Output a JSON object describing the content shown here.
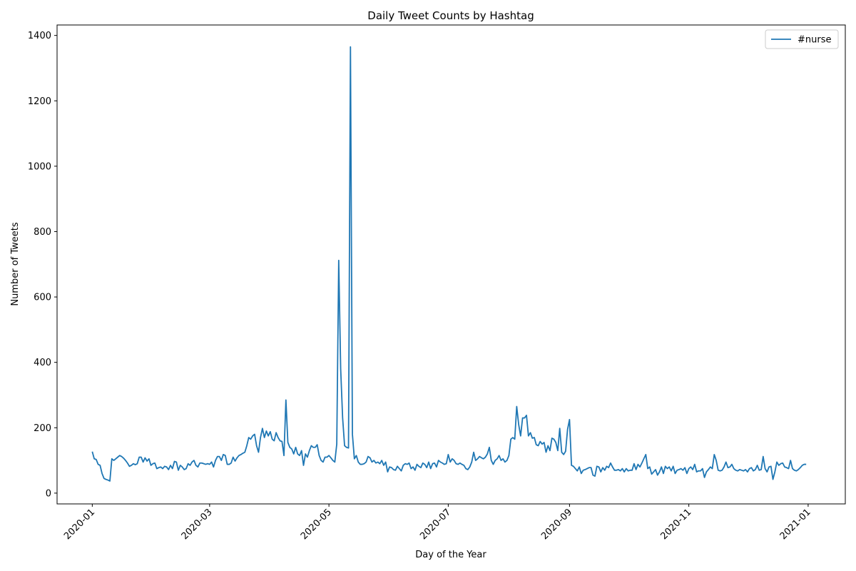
{
  "chart_data": {
    "type": "line",
    "title": "Daily Tweet Counts by Hashtag",
    "xlabel": "Day of the Year",
    "ylabel": "Number of Tweets",
    "x": [
      0,
      1,
      2,
      3,
      4,
      5,
      6,
      7,
      8,
      9,
      10,
      11,
      12,
      13,
      14,
      15,
      16,
      17,
      18,
      19,
      20,
      21,
      22,
      23,
      24,
      25,
      26,
      27,
      28,
      29,
      30,
      31,
      32,
      33,
      34,
      35,
      36,
      37,
      38,
      39,
      40,
      41,
      42,
      43,
      44,
      45,
      46,
      47,
      48,
      49,
      50,
      51,
      52,
      53,
      54,
      55,
      56,
      57,
      58,
      59,
      60,
      61,
      62,
      63,
      64,
      65,
      66,
      67,
      68,
      69,
      70,
      71,
      72,
      73,
      74,
      75,
      76,
      77,
      78,
      79,
      80,
      81,
      82,
      83,
      84,
      85,
      86,
      87,
      88,
      89,
      90,
      91,
      92,
      93,
      94,
      95,
      96,
      97,
      98,
      99,
      100,
      101,
      102,
      103,
      104,
      105,
      106,
      107,
      108,
      109,
      110,
      111,
      112,
      113,
      114,
      115,
      116,
      117,
      118,
      119,
      120,
      121,
      122,
      123,
      124,
      125,
      126,
      127,
      128,
      129,
      130,
      131,
      132,
      133,
      134,
      135,
      136,
      137,
      138,
      139,
      140,
      141,
      142,
      143,
      144,
      145,
      146,
      147,
      148,
      149,
      150,
      151,
      152,
      153,
      154,
      155,
      156,
      157,
      158,
      159,
      160,
      161,
      162,
      163,
      164,
      165,
      166,
      167,
      168,
      169,
      170,
      171,
      172,
      173,
      174,
      175,
      176,
      177,
      178,
      179,
      180,
      181,
      182,
      183,
      184,
      185,
      186,
      187,
      188,
      189,
      190,
      191,
      192,
      193,
      194,
      195,
      196,
      197,
      198,
      199,
      200,
      201,
      202,
      203,
      204,
      205,
      206,
      207,
      208,
      209,
      210,
      211,
      212,
      213,
      214,
      215,
      216,
      217,
      218,
      219,
      220,
      221,
      222,
      223,
      224,
      225,
      226,
      227,
      228,
      229,
      230,
      231,
      232,
      233,
      234,
      235,
      236,
      237,
      238,
      239,
      240,
      241,
      242,
      243,
      244,
      245,
      246,
      247,
      248,
      249,
      250,
      251,
      252,
      253,
      254,
      255,
      256,
      257,
      258,
      259,
      260,
      261,
      262,
      263,
      264,
      265,
      266,
      267,
      268,
      269,
      270,
      271,
      272,
      273,
      274,
      275,
      276,
      277,
      278,
      279,
      280,
      281,
      282,
      283,
      284,
      285,
      286,
      287,
      288,
      289,
      290,
      291,
      292,
      293,
      294,
      295,
      296,
      297,
      298,
      299,
      300,
      301,
      302,
      303,
      304,
      305,
      306,
      307,
      308,
      309,
      310,
      311,
      312,
      313,
      314,
      315,
      316,
      317,
      318,
      319,
      320,
      321,
      322,
      323,
      324,
      325,
      326,
      327,
      328,
      329,
      330,
      331,
      332,
      333,
      334,
      335,
      336,
      337,
      338,
      339,
      340,
      341,
      342,
      343,
      344,
      345,
      346,
      347,
      348,
      349,
      350,
      351,
      352,
      353,
      354,
      355,
      356,
      357,
      358,
      359,
      360,
      361,
      362,
      363,
      364,
      365
    ],
    "series": [
      {
        "name": "#nurse",
        "color": "#1f77b4",
        "values": [
          127,
          105,
          103,
          88,
          85,
          60,
          45,
          42,
          40,
          37,
          105,
          100,
          105,
          110,
          115,
          112,
          107,
          100,
          92,
          82,
          85,
          90,
          87,
          90,
          110,
          110,
          95,
          108,
          98,
          105,
          85,
          90,
          92,
          75,
          78,
          80,
          75,
          82,
          80,
          72,
          85,
          75,
          97,
          95,
          70,
          85,
          80,
          72,
          75,
          90,
          85,
          95,
          100,
          85,
          80,
          92,
          92,
          90,
          88,
          90,
          88,
          95,
          80,
          100,
          112,
          112,
          100,
          118,
          115,
          88,
          88,
          92,
          110,
          98,
          108,
          115,
          118,
          122,
          125,
          145,
          170,
          165,
          175,
          180,
          145,
          125,
          170,
          198,
          170,
          190,
          175,
          188,
          165,
          160,
          185,
          170,
          160,
          158,
          115,
          285,
          155,
          140,
          135,
          120,
          140,
          120,
          115,
          130,
          85,
          120,
          110,
          130,
          145,
          140,
          140,
          148,
          115,
          100,
          95,
          110,
          110,
          115,
          108,
          100,
          95,
          150,
          712,
          380,
          230,
          145,
          140,
          138,
          1365,
          180,
          105,
          115,
          95,
          88,
          88,
          90,
          95,
          112,
          108,
          95,
          100,
          92,
          95,
          90,
          100,
          85,
          95,
          65,
          80,
          78,
          72,
          70,
          82,
          75,
          68,
          85,
          90,
          88,
          92,
          75,
          80,
          70,
          88,
          82,
          78,
          92,
          88,
          78,
          95,
          75,
          90,
          92,
          80,
          100,
          95,
          92,
          88,
          90,
          118,
          95,
          105,
          100,
          90,
          88,
          92,
          88,
          85,
          75,
          72,
          80,
          95,
          125,
          100,
          105,
          112,
          108,
          105,
          110,
          120,
          140,
          100,
          88,
          100,
          105,
          115,
          100,
          105,
          95,
          100,
          115,
          165,
          170,
          165,
          265,
          210,
          175,
          230,
          230,
          238,
          175,
          185,
          168,
          170,
          148,
          145,
          158,
          150,
          155,
          125,
          145,
          130,
          168,
          165,
          155,
          130,
          198,
          125,
          118,
          128,
          195,
          225,
          85,
          82,
          75,
          68,
          80,
          60,
          70,
          72,
          75,
          78,
          78,
          55,
          52,
          82,
          80,
          65,
          78,
          70,
          82,
          78,
          92,
          80,
          70,
          70,
          72,
          68,
          75,
          65,
          75,
          68,
          70,
          70,
          90,
          72,
          88,
          80,
          92,
          105,
          118,
          75,
          80,
          58,
          65,
          72,
          55,
          65,
          80,
          60,
          82,
          75,
          80,
          68,
          82,
          60,
          70,
          72,
          75,
          70,
          78,
          60,
          75,
          80,
          72,
          88,
          65,
          68,
          68,
          75,
          48,
          65,
          72,
          80,
          75,
          118,
          100,
          70,
          68,
          70,
          80,
          95,
          78,
          80,
          88,
          75,
          70,
          68,
          72,
          70,
          68,
          72,
          65,
          75,
          78,
          68,
          72,
          85,
          70,
          72,
          112,
          75,
          65,
          80,
          82,
          42,
          65,
          95,
          85,
          90,
          92,
          80,
          78,
          75,
          100,
          75,
          70,
          68,
          72,
          78,
          85,
          88,
          88
        ]
      }
    ],
    "xlim": [
      -18,
      385
    ],
    "xticks": [
      {
        "value": 0,
        "label": "2020-01"
      },
      {
        "value": 60,
        "label": "2020-03"
      },
      {
        "value": 121,
        "label": "2020-05"
      },
      {
        "value": 182,
        "label": "2020-07"
      },
      {
        "value": 244,
        "label": "2020-09"
      },
      {
        "value": 305,
        "label": "2020-11"
      },
      {
        "value": 366,
        "label": "2021-01"
      }
    ],
    "ylim": [
      -33,
      1432
    ],
    "yticks": [
      0,
      200,
      400,
      600,
      800,
      1000,
      1200,
      1400
    ],
    "legend": "upper right"
  }
}
